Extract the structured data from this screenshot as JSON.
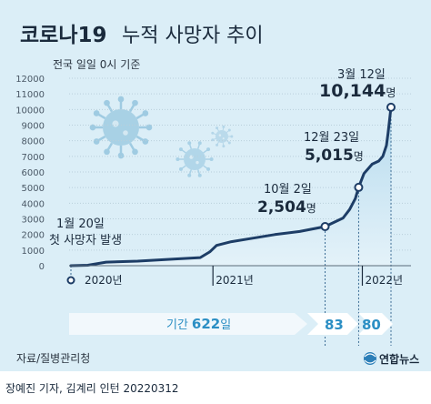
{
  "title_bold": "코로나19",
  "title_rest": "누적 사망자 추이",
  "subtitle": "전국 일일 0시 기준",
  "source": "자료/질병관리청",
  "credit": "장예진 기자, 김계리 인턴  20220312",
  "logo_text": "연합뉴스",
  "colors": {
    "background": "#d9ecf5",
    "line": "#1d3d66",
    "accent": "#2c8fc4",
    "arrow_light": "#eaf4fa",
    "arrow_dark": "#3b86b7"
  },
  "chart_data": {
    "type": "line",
    "title": "코로나19 누적 사망자 추이",
    "subtitle": "전국 일일 0시 기준",
    "ylim": [
      0,
      12000
    ],
    "yticks": [
      0,
      1000,
      2000,
      3000,
      4000,
      5000,
      6000,
      7000,
      8000,
      9000,
      10000,
      11000,
      12000
    ],
    "year_labels": [
      "2020년",
      "2021년",
      "2022년"
    ],
    "series": [
      {
        "x": [
          "2020-01-20",
          "2020-03-01",
          "2020-04-15",
          "2020-07-01",
          "2020-10-01",
          "2020-12-01",
          "2020-12-25",
          "2021-01-10",
          "2021-02-15",
          "2021-04-01",
          "2021-06-01",
          "2021-08-01",
          "2021-10-02",
          "2021-11-15",
          "2021-12-01",
          "2021-12-15",
          "2021-12-23",
          "2022-01-05",
          "2022-01-25",
          "2022-02-10",
          "2022-02-20",
          "2022-03-01",
          "2022-03-05",
          "2022-03-12"
        ],
        "y": [
          0,
          30,
          230,
          290,
          430,
          520,
          900,
          1300,
          1540,
          1730,
          1990,
          2190,
          2504,
          3050,
          3600,
          4300,
          5015,
          5900,
          6500,
          6700,
          7000,
          7700,
          8500,
          10144
        ]
      }
    ],
    "annotations": [
      {
        "date_label": "1월 20일",
        "value_label": "첫 사망자 발생",
        "x": "2020-01-20",
        "y": 0
      },
      {
        "date_label": "10월 2일",
        "value_label": "2,504",
        "unit": "명",
        "x": "2021-10-02",
        "y": 2504
      },
      {
        "date_label": "12월 23일",
        "value_label": "5,015",
        "unit": "명",
        "x": "2021-12-23",
        "y": 5015
      },
      {
        "date_label": "3월 12일",
        "value_label": "10,144",
        "unit": "명",
        "x": "2022-03-12",
        "y": 10144
      }
    ],
    "periods": [
      {
        "label_prefix": "기간",
        "value": "622",
        "unit": "일",
        "from": "2020-01-20",
        "to": "2021-10-02"
      },
      {
        "value": "83",
        "from": "2021-10-02",
        "to": "2021-12-23"
      },
      {
        "value": "80",
        "from": "2021-12-23",
        "to": "2022-03-12"
      }
    ]
  }
}
